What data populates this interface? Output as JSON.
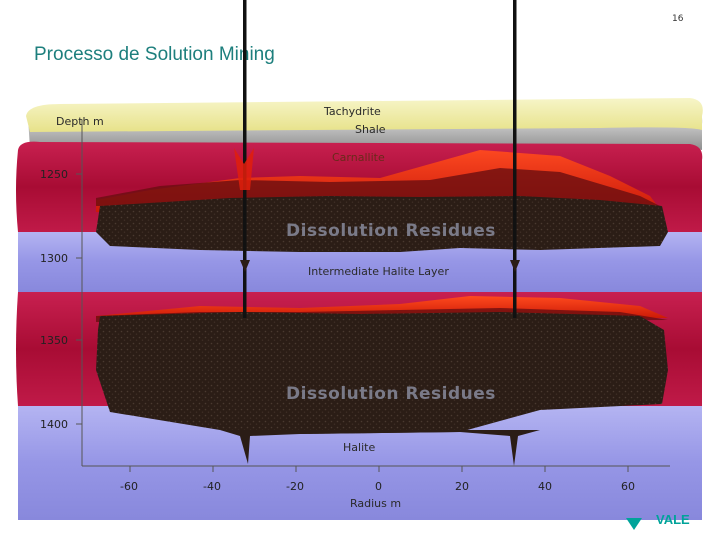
{
  "page_number": "16",
  "title": "Processo de Solution Mining",
  "layers": {
    "tachydrite": "Tachydrite",
    "shale": "Shale",
    "carnallite": "Carnallite",
    "dissolution_upper": "Dissolution Residues",
    "intermediate": "Intermediate Halite Layer",
    "dissolution_lower": "Dissolution Residues",
    "halite": "Halite"
  },
  "axis": {
    "y_label": "Depth m",
    "y_ticks": [
      "1250",
      "1300",
      "1350",
      "1400"
    ],
    "x_label": "Radius m",
    "x_ticks": [
      "-60",
      "-40",
      "-20",
      "0",
      "20",
      "40",
      "60"
    ]
  },
  "logo": {
    "text": "VALE",
    "color": "#00a39a"
  },
  "colors": {
    "shale": "#b5b5b5",
    "tachydrite": "#f3f0a3",
    "carnallite": "#b8123e",
    "halite": "#9a9ae8",
    "residue": "#2e2018",
    "cavity_red": "#e01e0c"
  }
}
